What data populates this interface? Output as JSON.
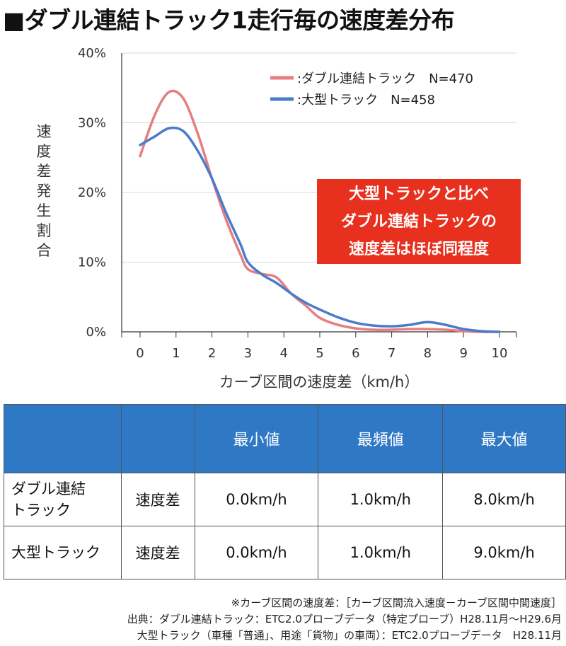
{
  "title": "■ダブル連結トラック1走行毎の速度差分布",
  "chart_data": {
    "type": "line",
    "ylabel": "速度差発生割合",
    "xlabel": "カーブ区間の速度差（km/h）",
    "x_ticks": [
      "0",
      "1",
      "2",
      "3",
      "4",
      "5",
      "6",
      "7",
      "8",
      "9",
      "10"
    ],
    "y_ticks": [
      "0%",
      "10%",
      "20%",
      "30%",
      "40%"
    ],
    "xlim": [
      0,
      10
    ],
    "ylim": [
      0,
      40
    ],
    "grid": "horizontal",
    "legend_position": "top-right",
    "series": [
      {
        "name": ":ダブル連結トラック　N=470",
        "color": "#e67e80",
        "x": [
          0,
          0.4,
          0.8,
          1.2,
          1.6,
          2.0,
          2.4,
          2.8,
          3.0,
          3.4,
          3.8,
          4.2,
          4.6,
          5.0,
          5.5,
          6.0,
          6.5,
          7.0,
          7.5,
          8.0,
          8.5,
          9.0,
          9.5,
          10.0
        ],
        "y": [
          25.2,
          31.0,
          34.4,
          33.5,
          28.5,
          22.0,
          16.0,
          11.0,
          9.0,
          8.3,
          7.8,
          5.5,
          3.8,
          2.0,
          1.0,
          0.5,
          0.3,
          0.3,
          0.4,
          0.4,
          0.3,
          0.1,
          0.0,
          0.0
        ]
      },
      {
        "name": ":大型トラック　N=458",
        "color": "#4a7cc9",
        "x": [
          0,
          0.4,
          0.8,
          1.2,
          1.6,
          2.0,
          2.4,
          2.8,
          3.0,
          3.4,
          3.8,
          4.2,
          4.6,
          5.0,
          5.5,
          6.0,
          6.5,
          7.0,
          7.5,
          8.0,
          8.5,
          9.0,
          9.5,
          10.0
        ],
        "y": [
          26.8,
          28.0,
          29.2,
          28.8,
          26.0,
          22.0,
          17.0,
          12.5,
          10.0,
          8.2,
          7.0,
          5.5,
          4.2,
          3.2,
          2.1,
          1.3,
          0.9,
          0.8,
          1.0,
          1.4,
          1.0,
          0.4,
          0.1,
          0.0
        ]
      }
    ]
  },
  "callout": {
    "line1": "大型トラックと比べ",
    "line2": "ダブル連結トラックの",
    "line3": "速度差はほぼ同程度"
  },
  "table": {
    "headers": [
      "",
      "",
      "最小値",
      "最頻値",
      "最大値"
    ],
    "rows": [
      {
        "vehicle_line1": "ダブル連結",
        "vehicle_line2": "トラック",
        "metric": "速度差",
        "min": "0.0km/h",
        "mode": "1.0km/h",
        "max": "8.0km/h"
      },
      {
        "vehicle_line1": "大型トラック",
        "vehicle_line2": "",
        "metric": "速度差",
        "min": "0.0km/h",
        "mode": "1.0km/h",
        "max": "9.0km/h"
      }
    ]
  },
  "footnotes": [
    "※カーブ区間の速度差：［カーブ区間流入速度－カーブ区間中間速度］",
    "出典：ダブル連結トラック：ETC2.0プローブデータ（特定プローブ）H28.11月～H29.6月",
    "大型トラック（車種「普通」、用途「貨物」の車両）：ETC2.0プローブデータ　H28.11月"
  ]
}
